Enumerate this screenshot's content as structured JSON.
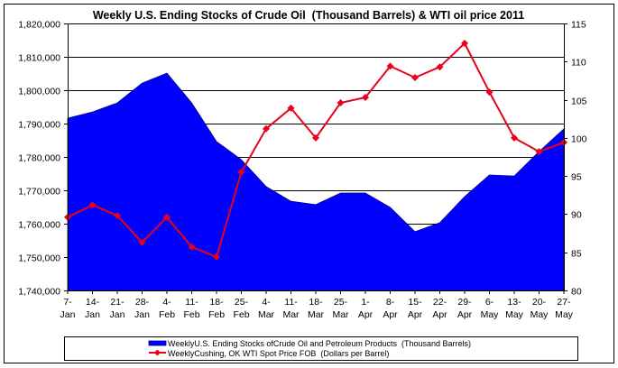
{
  "chart_data": {
    "type": "area+line",
    "title": "Weekly U.S. Ending Stocks of Crude Oil  (Thousand Barrels) & WTI oil price 2011",
    "categories": [
      [
        "7-",
        "Jan"
      ],
      [
        "14-",
        "Jan"
      ],
      [
        "21-",
        "Jan"
      ],
      [
        "28-",
        "Jan"
      ],
      [
        "4-",
        "Feb"
      ],
      [
        "11-",
        "Feb"
      ],
      [
        "18-",
        "Feb"
      ],
      [
        "25-",
        "Feb"
      ],
      [
        "4-",
        "Mar"
      ],
      [
        "11-",
        "Mar"
      ],
      [
        "18-",
        "Mar"
      ],
      [
        "25-",
        "Mar"
      ],
      [
        "1-",
        "Apr"
      ],
      [
        "8-",
        "Apr"
      ],
      [
        "15-",
        "Apr"
      ],
      [
        "22-",
        "Apr"
      ],
      [
        "29-",
        "Apr"
      ],
      [
        "6-",
        "May"
      ],
      [
        "13-",
        "May"
      ],
      [
        "20-",
        "May"
      ],
      [
        "27-",
        "May"
      ]
    ],
    "y_left": {
      "min": 1740000,
      "max": 1820000,
      "step": 10000,
      "tick_labels": [
        "1,740,000",
        "1,750,000",
        "1,760,000",
        "1,770,000",
        "1,780,000",
        "1,790,000",
        "1,800,000",
        "1,810,000",
        "1,820,000"
      ]
    },
    "y_right": {
      "min": 80,
      "max": 115,
      "step": 5,
      "tick_labels": [
        "80",
        "85",
        "90",
        "95",
        "100",
        "105",
        "110",
        "115"
      ]
    },
    "grid": true,
    "legend_position": "bottom",
    "series": [
      {
        "name": "WeeklyU.S. Ending Stocks ofCrude Oil and Petroleum Products  (Thousand Barrels)",
        "type": "area",
        "axis": "left",
        "color": "#0000ff",
        "values": [
          1791600,
          1793500,
          1796200,
          1802100,
          1805100,
          1796200,
          1784600,
          1779200,
          1771100,
          1766700,
          1765700,
          1769200,
          1769200,
          1764900,
          1757600,
          1760300,
          1768100,
          1774600,
          1774300,
          1781600,
          1788400
        ]
      },
      {
        "name": "WeeklyCushing, OK WTI Spot Price FOB  (Dollars per Barrel)",
        "type": "line",
        "axis": "right",
        "color": "#e8001c",
        "values": [
          89.6,
          91.2,
          89.8,
          86.3,
          89.6,
          85.7,
          84.4,
          95.5,
          101.2,
          103.9,
          100.0,
          104.6,
          105.3,
          109.4,
          107.9,
          109.3,
          112.4,
          106.0,
          100.0,
          98.2,
          99.4
        ]
      }
    ]
  }
}
